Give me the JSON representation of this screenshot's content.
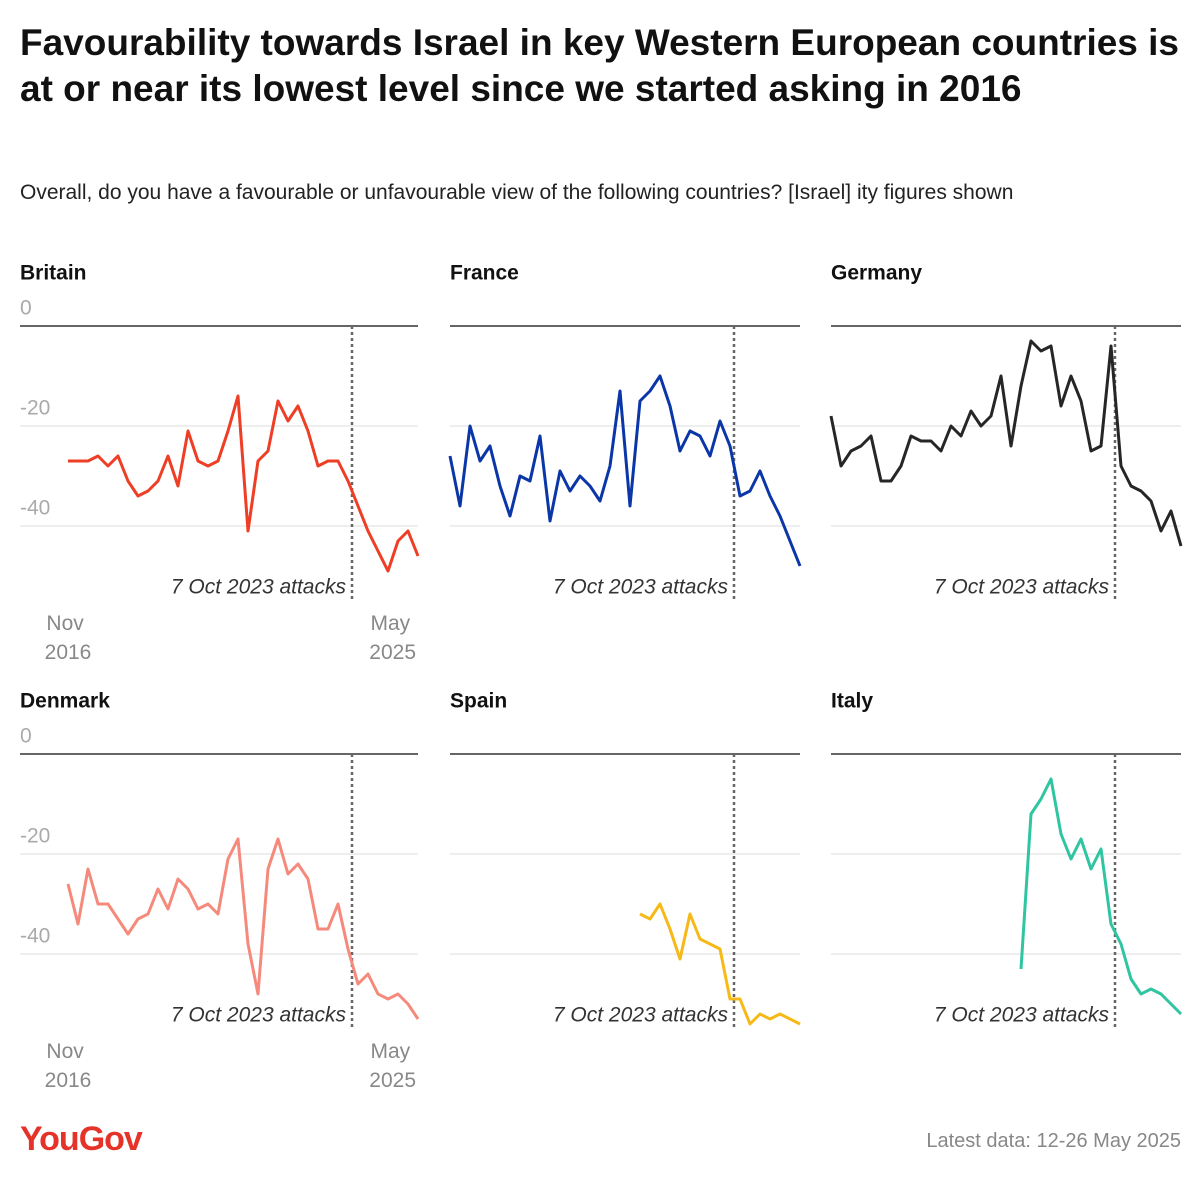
{
  "title": "Favourability towards Israel in key Western European countries is at or near its lowest level since we started asking in 2016",
  "subtitle": "Overall, do you have a favourable or unfavourable view of the following countries? [Israel] ity figures shown",
  "logo": "YouGov",
  "note": "Latest data: 12-26 May 2025",
  "chart_data": [
    {
      "type": "line",
      "title": "Britain",
      "color": "#ee3e25",
      "values": [
        -27,
        -27,
        -27,
        -26,
        -28,
        -26,
        -31,
        -34,
        -33,
        -31,
        -26,
        -32,
        -21,
        -27,
        -28,
        -27,
        -21,
        -14,
        -41,
        -27,
        -25,
        -15,
        -19,
        -16,
        -21,
        -28,
        -27,
        -27,
        -31,
        -36,
        -41,
        -45,
        -49,
        -43,
        -41,
        -46
      ],
      "categories": [
        "Nov 2016",
        null,
        null,
        null,
        null,
        null,
        null,
        null,
        null,
        null,
        null,
        null,
        null,
        null,
        null,
        null,
        null,
        null,
        null,
        null,
        null,
        null,
        null,
        null,
        null,
        null,
        null,
        null,
        null,
        null,
        null,
        null,
        null,
        null,
        null,
        "May 2025"
      ],
      "ylim": [
        -56,
        0
      ],
      "yticks": [
        0,
        -20,
        -40
      ],
      "ytick_labels": true,
      "event": {
        "label": "7 Oct 2023 attacks",
        "index": 28.4
      }
    },
    {
      "type": "line",
      "title": "France",
      "color": "#0a36a8",
      "values": [
        -26,
        -36,
        -20,
        -27,
        -24,
        -32,
        -38,
        -30,
        -31,
        -22,
        -39,
        -29,
        -33,
        -30,
        -32,
        -35,
        -28,
        -13,
        -36,
        -15,
        -13,
        -10,
        -16,
        -25,
        -21,
        -22,
        -26,
        -19,
        -24,
        -34,
        -33,
        -29,
        -34,
        -38,
        -43,
        -48
      ],
      "ylim": [
        -56,
        0
      ],
      "yticks": [
        0,
        -20,
        -40
      ],
      "ytick_labels": false,
      "event": {
        "label": "7 Oct 2023 attacks",
        "index": 28.4
      }
    },
    {
      "type": "line",
      "title": "Germany",
      "color": "#262626",
      "values": [
        -18,
        -28,
        -25,
        -24,
        -22,
        -31,
        -31,
        -28,
        -22,
        -23,
        -23,
        -25,
        -20,
        -22,
        -17,
        -20,
        -18,
        -10,
        -24,
        -12,
        -3,
        -5,
        -4,
        -16,
        -10,
        -15,
        -25,
        -24,
        -4,
        -28,
        -32,
        -33,
        -35,
        -41,
        -37,
        -44
      ],
      "ylim": [
        -56,
        0
      ],
      "yticks": [
        0,
        -20,
        -40
      ],
      "ytick_labels": false,
      "event": {
        "label": "7 Oct 2023 attacks",
        "index": 28.4
      }
    },
    {
      "type": "line",
      "title": "Denmark",
      "color": "#f58a7c",
      "values": [
        -26,
        -34,
        -23,
        -30,
        -30,
        -33,
        -36,
        -33,
        -32,
        -27,
        -31,
        -25,
        -27,
        -31,
        -30,
        -32,
        -21,
        -17,
        -38,
        -48,
        -23,
        -17,
        -24,
        -22,
        -25,
        -35,
        -35,
        -30,
        -39,
        -46,
        -44,
        -48,
        -49,
        -48,
        -50,
        -53
      ],
      "categories": [
        "Nov 2016",
        null,
        null,
        null,
        null,
        null,
        null,
        null,
        null,
        null,
        null,
        null,
        null,
        null,
        null,
        null,
        null,
        null,
        null,
        null,
        null,
        null,
        null,
        null,
        null,
        null,
        null,
        null,
        null,
        null,
        null,
        null,
        null,
        null,
        null,
        "May 2025"
      ],
      "ylim": [
        -56,
        0
      ],
      "yticks": [
        0,
        -20,
        -40
      ],
      "ytick_labels": true,
      "event": {
        "label": "7 Oct 2023 attacks",
        "index": 28.4
      }
    },
    {
      "type": "line",
      "title": "Spain",
      "color": "#f6b918",
      "values": [
        null,
        null,
        null,
        null,
        null,
        null,
        null,
        null,
        null,
        null,
        null,
        null,
        null,
        null,
        null,
        null,
        null,
        null,
        null,
        -32,
        -33,
        -30,
        -35,
        -41,
        -32,
        -37,
        -38,
        -39,
        -49,
        -49,
        -54,
        -52,
        -53,
        -52,
        -53,
        -54
      ],
      "ylim": [
        -56,
        0
      ],
      "yticks": [
        0,
        -20,
        -40
      ],
      "ytick_labels": false,
      "event": {
        "label": "7 Oct 2023 attacks",
        "index": 28.4
      }
    },
    {
      "type": "line",
      "title": "Italy",
      "color": "#2fc5a0",
      "values": [
        null,
        null,
        null,
        null,
        null,
        null,
        null,
        null,
        null,
        null,
        null,
        null,
        null,
        null,
        null,
        null,
        null,
        null,
        null,
        -43,
        -12,
        -9,
        -5,
        -16,
        -21,
        -17,
        -23,
        -19,
        -34,
        -38,
        -45,
        -48,
        -47,
        -48,
        -50,
        -52
      ],
      "ylim": [
        -56,
        0
      ],
      "yticks": [
        0,
        -20,
        -40
      ],
      "ytick_labels": false,
      "event": {
        "label": "7 Oct 2023 attacks",
        "index": 28.4
      }
    }
  ]
}
